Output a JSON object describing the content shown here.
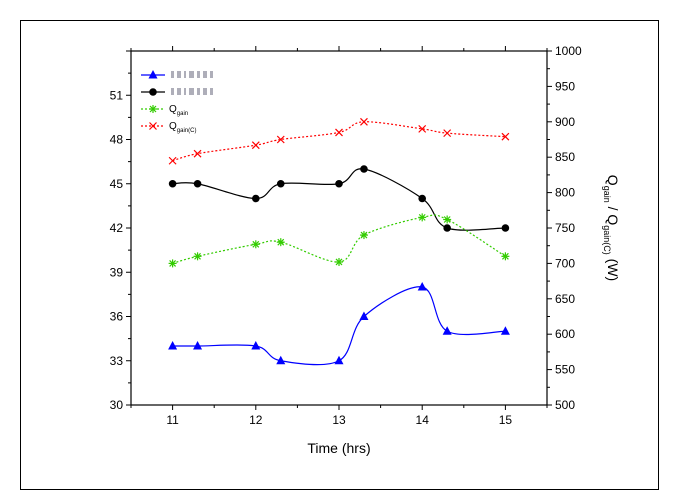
{
  "chart_data": {
    "type": "line",
    "xlabel": "Time (hrs)",
    "y2label_parts": [
      "Q",
      "gain",
      " / Q",
      "gain(C)",
      " (W)"
    ],
    "xlim": [
      10.5,
      15.5
    ],
    "ylim": [
      30,
      54
    ],
    "y2lim": [
      500,
      1000
    ],
    "x_ticks": [
      11,
      12,
      13,
      14,
      15
    ],
    "y_ticks": [
      30,
      33,
      36,
      39,
      42,
      45,
      48,
      51
    ],
    "y2_ticks": [
      500,
      550,
      600,
      650,
      700,
      750,
      800,
      850,
      900,
      950,
      1000
    ],
    "grid": false,
    "legend_position": "top-left",
    "series": [
      {
        "legend_text": "",
        "axis": "left",
        "color": "#0000ff",
        "marker": "triangle",
        "line": "solid",
        "x": [
          11,
          11.3,
          12,
          12.3,
          13,
          13.3,
          14,
          14.3,
          15
        ],
        "y": [
          34,
          34,
          34,
          33,
          33,
          36,
          38,
          35,
          35
        ]
      },
      {
        "legend_text": "",
        "axis": "left",
        "color": "#000000",
        "marker": "circle",
        "line": "solid",
        "x": [
          11,
          11.3,
          12,
          12.3,
          13,
          13.3,
          14,
          14.3,
          15
        ],
        "y": [
          45,
          45,
          44,
          45,
          45,
          46,
          44,
          42,
          42
        ]
      },
      {
        "name": "Q",
        "sub": "gain",
        "axis": "right",
        "color": "#33cc00",
        "marker": "asterisk",
        "line": "dotted",
        "x": [
          11,
          11.3,
          12,
          12.3,
          13,
          13.3,
          14,
          14.3,
          15
        ],
        "y": [
          700,
          710,
          727,
          730,
          702,
          740,
          765,
          762,
          710
        ]
      },
      {
        "name": "Q",
        "sub": "gain(C)",
        "axis": "right",
        "color": "#ff0000",
        "marker": "cross",
        "line": "dotted",
        "x": [
          11,
          11.3,
          12,
          12.3,
          13,
          13.3,
          14,
          14.3,
          15
        ],
        "y": [
          845,
          855,
          867,
          875,
          885,
          900,
          890,
          884,
          879
        ]
      }
    ]
  }
}
